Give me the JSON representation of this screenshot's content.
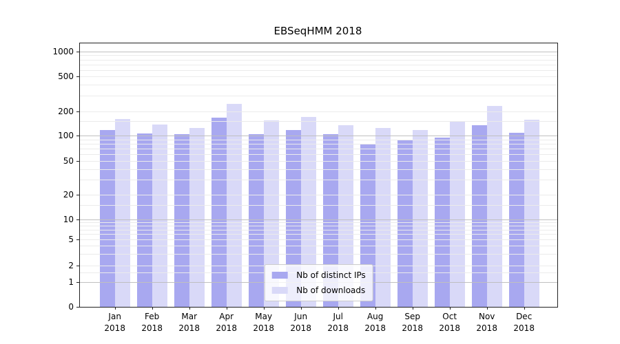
{
  "title": "EBSeqHMM 2018",
  "chart_data": {
    "type": "bar",
    "title": "EBSeqHMM 2018",
    "categories": [
      "Jan 2018",
      "Feb 2018",
      "Mar 2018",
      "Apr 2018",
      "May 2018",
      "Jun 2018",
      "Jul 2018",
      "Aug 2018",
      "Sep 2018",
      "Oct 2018",
      "Nov 2018",
      "Dec 2018"
    ],
    "series": [
      {
        "name": "Nb of distinct IPs",
        "color": "#a8a8f0",
        "values": [
          118,
          106,
          103,
          165,
          105,
          117,
          103,
          80,
          87,
          94,
          133,
          108
        ]
      },
      {
        "name": "Nb of downloads",
        "color": "#d9d9f8",
        "values": [
          160,
          136,
          125,
          242,
          154,
          171,
          133,
          125,
          116,
          152,
          230,
          158
        ]
      }
    ],
    "y_axis": {
      "scale": "pseudo-log",
      "ticks": [
        0,
        1,
        2,
        5,
        10,
        20,
        50,
        100,
        200,
        500,
        1000
      ],
      "range": [
        0,
        1200
      ]
    },
    "x_axis": {
      "year_line": "2018"
    },
    "legend": {
      "position": "lower center"
    },
    "grid": {
      "orientation": "horizontal",
      "minor_color": "#ebebeb",
      "major_color": "#bfbfbf"
    }
  }
}
